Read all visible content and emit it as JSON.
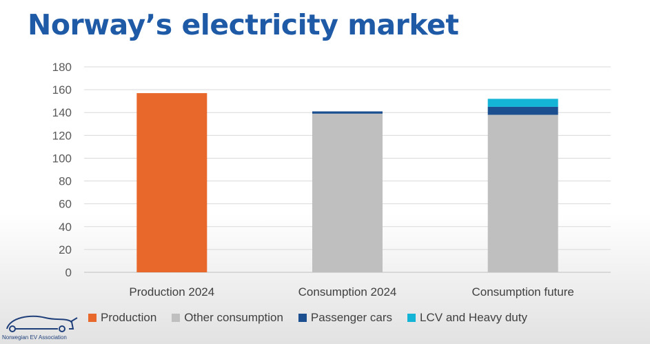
{
  "page": {
    "title": "Norway’s electricity market"
  },
  "logo": {
    "text": "Norwegian EV Association"
  },
  "colors": {
    "Production": "#e8682b",
    "Other consumption": "#bfbfbf",
    "Passenger cars": "#1b4f8f",
    "LCV and Heavy duty": "#13b4d6"
  },
  "chart_data": {
    "type": "bar",
    "stacked": true,
    "categories": [
      "Production 2024",
      "Consumption 2024",
      "Consumption future"
    ],
    "series": [
      {
        "name": "Production",
        "values": [
          157,
          0,
          0
        ]
      },
      {
        "name": "Other consumption",
        "values": [
          0,
          139,
          138
        ]
      },
      {
        "name": "Passenger cars",
        "values": [
          0,
          2,
          7
        ]
      },
      {
        "name": "LCV and Heavy duty",
        "values": [
          0,
          0,
          7
        ]
      }
    ],
    "ylim": [
      0,
      180
    ],
    "yticks": [
      0,
      20,
      40,
      60,
      80,
      100,
      120,
      140,
      160,
      180
    ],
    "grid": true,
    "legend": "bottom"
  }
}
